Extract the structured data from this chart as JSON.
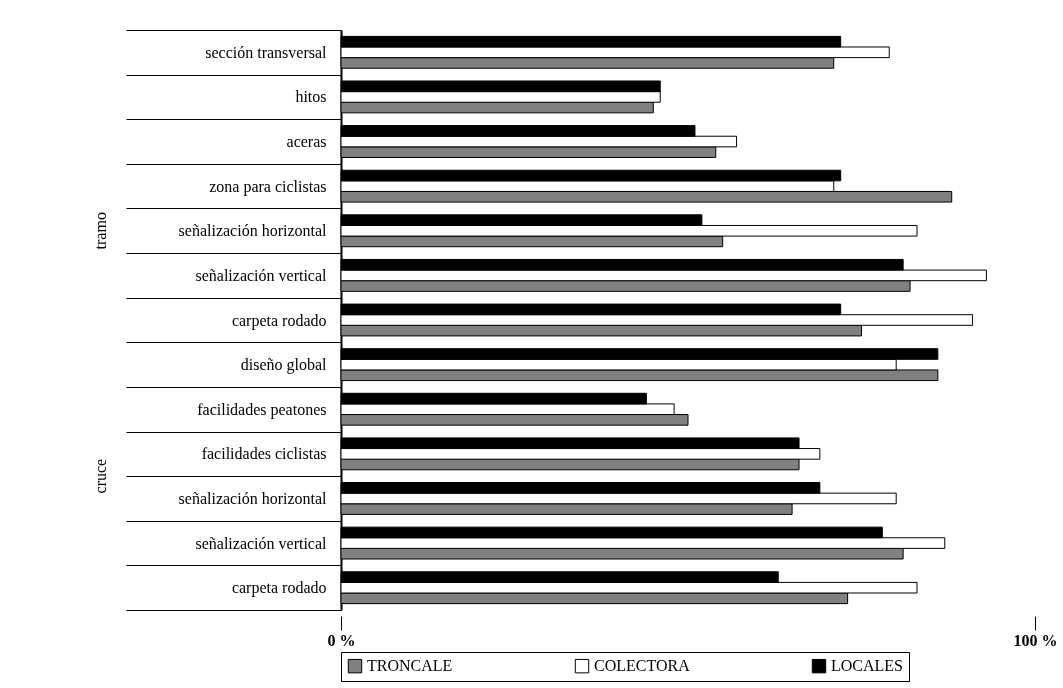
{
  "chart_data": {
    "type": "bar",
    "orientation": "horizontal",
    "categories": [
      "sección transversal",
      "hitos",
      "aceras",
      "zona para ciclistas",
      "señalización horizontal",
      "señalización vertical",
      "carpeta rodado",
      "diseño global",
      "facilidades peatones",
      "facilidades ciclistas",
      "señalización horizontal",
      "señalización vertical",
      "carpeta rodado"
    ],
    "series": [
      {
        "name": "TRONCALE",
        "color": "#808080",
        "values": [
          71,
          45,
          54,
          88,
          55,
          82,
          75,
          86,
          50,
          66,
          65,
          81,
          73
        ]
      },
      {
        "name": "COLECTORA",
        "color": "#ffffff",
        "values": [
          79,
          46,
          57,
          71,
          83,
          93,
          91,
          80,
          48,
          69,
          80,
          87,
          83
        ]
      },
      {
        "name": "LOCALES",
        "color": "#000000",
        "values": [
          72,
          46,
          51,
          72,
          52,
          81,
          72,
          86,
          44,
          66,
          69,
          78,
          63
        ]
      }
    ],
    "xlim": [
      0,
      100
    ],
    "xticks": [
      {
        "value": 0,
        "label": "0 %"
      },
      {
        "value": 100,
        "label": "100 %"
      }
    ],
    "annotations": [
      "tramo",
      "cruce"
    ],
    "legend": "bottom",
    "grid": false
  }
}
